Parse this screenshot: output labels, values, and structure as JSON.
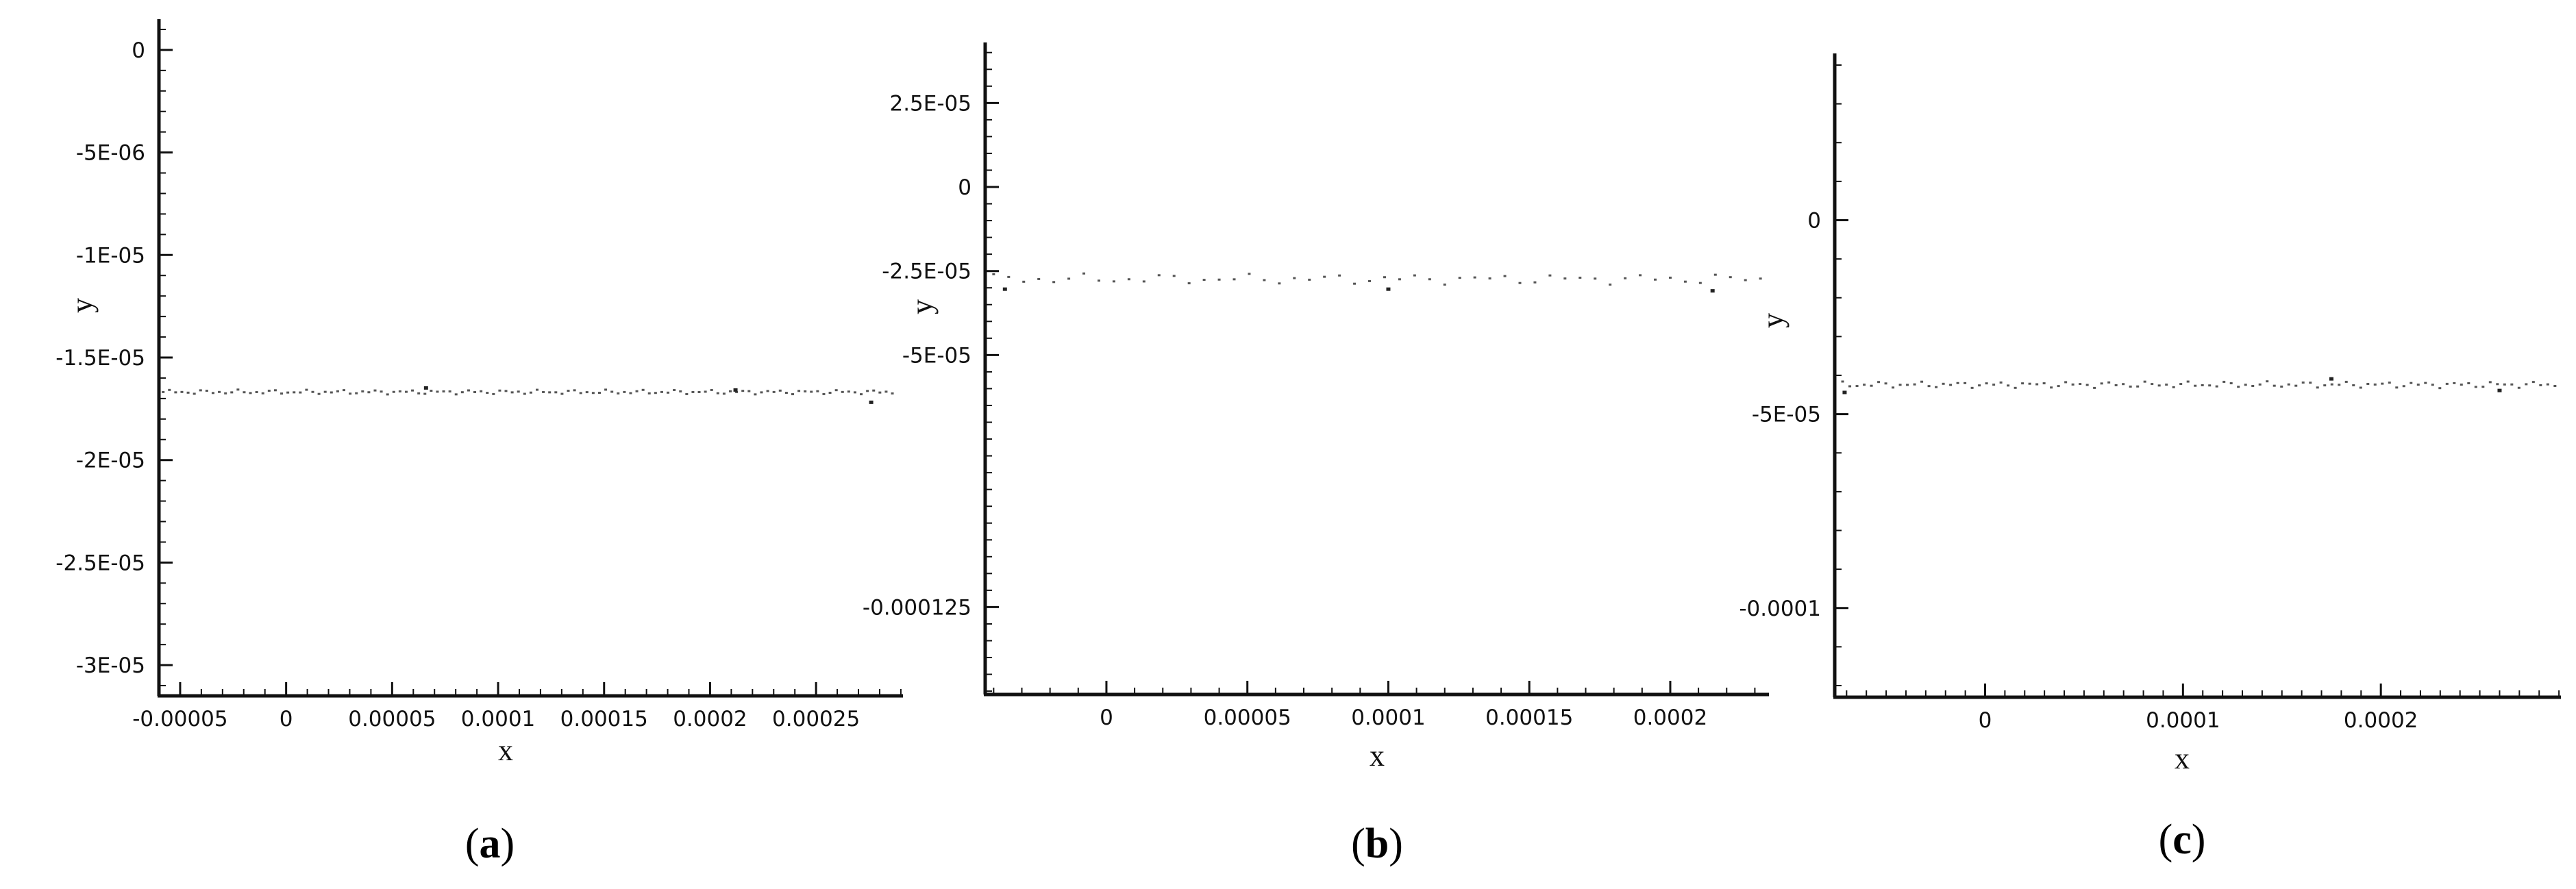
{
  "chart_data": [
    {
      "type": "scatter",
      "panel_label": "a",
      "xlabel": "x",
      "ylabel": "y",
      "xlim": [
        -6e-05,
        0.000291
      ],
      "ylim": [
        -3.15e-05,
        1.5e-06
      ],
      "xticks": [
        {
          "value": -5e-05,
          "label": "-0.00005"
        },
        {
          "value": 0,
          "label": "0"
        },
        {
          "value": 5e-05,
          "label": "0.00005"
        },
        {
          "value": 0.0001,
          "label": "0.0001"
        },
        {
          "value": 0.00015,
          "label": "0.00015"
        },
        {
          "value": 0.0002,
          "label": "0.0002"
        },
        {
          "value": 0.00025,
          "label": "0.00025"
        }
      ],
      "yticks": [
        {
          "value": 0,
          "label": "0"
        },
        {
          "value": -5e-06,
          "label": "-5E-06"
        },
        {
          "value": -1e-05,
          "label": "-1E-05"
        },
        {
          "value": -1.5e-05,
          "label": "-1.5E-05"
        },
        {
          "value": -2e-05,
          "label": "-2E-05"
        },
        {
          "value": -2.5e-05,
          "label": "-2.5E-05"
        },
        {
          "value": -3e-05,
          "label": "-3E-05"
        }
      ],
      "x_minor_step": 1e-05,
      "y_minor_step": 1e-06,
      "series": [
        {
          "x_start": -5.8e-05,
          "x_end": 0.000286,
          "count": 118,
          "y_center": -1.67e-05,
          "y_amplitude": 1.2e-07,
          "outliers": [
            {
              "x": 0.000276,
              "y": -1.72e-05
            },
            {
              "x": 6.6e-05,
              "y": -1.65e-05
            },
            {
              "x": 0.000212,
              "y": -1.66e-05
            }
          ]
        }
      ]
    },
    {
      "type": "scatter",
      "panel_label": "b",
      "xlabel": "x",
      "ylabel": "y",
      "xlim": [
        -4.3e-05,
        0.000235
      ],
      "ylim": [
        -0.000151,
        4.3e-05
      ],
      "xticks": [
        {
          "value": 0,
          "label": "0"
        },
        {
          "value": 5e-05,
          "label": "0.00005"
        },
        {
          "value": 0.0001,
          "label": "0.0001"
        },
        {
          "value": 0.00015,
          "label": "0.00015"
        },
        {
          "value": 0.0002,
          "label": "0.0002"
        }
      ],
      "yticks": [
        {
          "value": 2.5e-05,
          "label": "2.5E-05"
        },
        {
          "value": 0,
          "label": "0"
        },
        {
          "value": -2.5e-05,
          "label": "-2.5E-05"
        },
        {
          "value": -5e-05,
          "label": "-5E-05"
        },
        {
          "value": -0.000125,
          "label": "-0.000125"
        }
      ],
      "x_minor_step": 1e-05,
      "y_minor_step": 5e-06,
      "series": [
        {
          "x_start": -4e-05,
          "x_end": 0.000232,
          "count": 52,
          "y_center": -2.75e-05,
          "y_amplitude": 1.7e-06,
          "outliers": [
            {
              "x": -3.6e-05,
              "y": -3.05e-05
            },
            {
              "x": 0.0001,
              "y": -3.05e-05
            },
            {
              "x": 0.000215,
              "y": -3.1e-05
            }
          ]
        }
      ]
    },
    {
      "type": "scatter",
      "panel_label": "c",
      "xlabel": "x",
      "ylabel": "y",
      "xlim": [
        -7.6e-05,
        0.000291
      ],
      "ylim": [
        -0.000123,
        4.3e-05
      ],
      "xticks": [
        {
          "value": 0,
          "label": "0"
        },
        {
          "value": 0.0001,
          "label": "0.0001"
        },
        {
          "value": 0.0002,
          "label": "0.0002"
        }
      ],
      "yticks": [
        {
          "value": 0,
          "label": "0"
        },
        {
          "value": -5e-05,
          "label": "-5E-05"
        },
        {
          "value": -0.0001,
          "label": "-0.0001"
        }
      ],
      "x_minor_step": 1e-05,
      "y_minor_step": 1e-05,
      "series": [
        {
          "x_start": -7.2e-05,
          "x_end": 0.000288,
          "count": 100,
          "y_center": -4.25e-05,
          "y_amplitude": 9e-07,
          "outliers": [
            {
              "x": -7.1e-05,
              "y": -4.45e-05
            },
            {
              "x": 0.00026,
              "y": -4.4e-05
            },
            {
              "x": 0.000175,
              "y": -4.1e-05
            }
          ]
        }
      ]
    }
  ],
  "colors": {
    "axis": "#111111",
    "points": "#555555",
    "outlier": "#222222"
  }
}
